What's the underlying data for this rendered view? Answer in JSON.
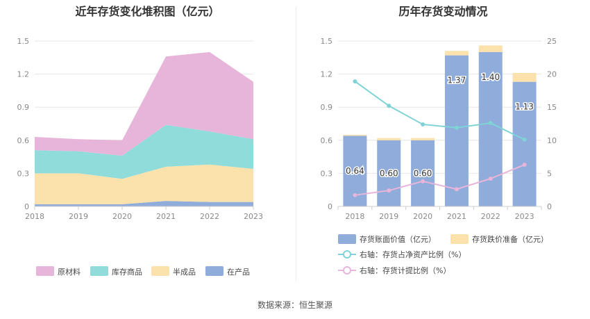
{
  "footer": {
    "source": "数据来源：恒生聚源"
  },
  "colors": {
    "raw_material": "#e8b5da",
    "goods": "#8fdcdb",
    "semi": "#fbe1ab",
    "wip": "#8facdb",
    "book_value": "#8facdb",
    "impairment": "#fbe1ab",
    "ratio_line": "#7fd3d6",
    "provision_line": "#e8b5da",
    "grid": "#e6e6e6",
    "axis_text": "#888888"
  },
  "chart_data": [
    {
      "type": "area",
      "stacked": true,
      "title": "近年存货变化堆积图（亿元）",
      "x": [
        "2018",
        "2019",
        "2020",
        "2021",
        "2022",
        "2023"
      ],
      "ylim": [
        0,
        1.5
      ],
      "yticks": [
        "0",
        "0.3",
        "0.6",
        "0.9",
        "1.2",
        "1.5"
      ],
      "grid": true,
      "legend_position": "bottom",
      "series": [
        {
          "name": "在产品",
          "color_key": "wip",
          "values": [
            0.02,
            0.02,
            0.02,
            0.05,
            0.04,
            0.04
          ]
        },
        {
          "name": "半成品",
          "color_key": "semi",
          "values": [
            0.28,
            0.28,
            0.23,
            0.31,
            0.34,
            0.3
          ]
        },
        {
          "name": "库存商品",
          "color_key": "goods",
          "values": [
            0.21,
            0.2,
            0.21,
            0.38,
            0.3,
            0.27
          ]
        },
        {
          "name": "原材料",
          "color_key": "raw_material",
          "values": [
            0.12,
            0.11,
            0.14,
            0.62,
            0.72,
            0.52
          ]
        }
      ],
      "legend_order": [
        "原材料",
        "库存商品",
        "半成品",
        "在产品"
      ]
    },
    {
      "type": "bar",
      "stacked": true,
      "title": "历年存货变动情况",
      "categories": [
        "2018",
        "2019",
        "2020",
        "2021",
        "2022",
        "2023"
      ],
      "ylim": [
        0,
        1.5
      ],
      "yticks": [
        "0",
        "0.3",
        "0.6",
        "0.9",
        "1.2",
        "1.5"
      ],
      "y2lim": [
        0,
        25
      ],
      "y2ticks": [
        "0",
        "5",
        "10",
        "15",
        "20",
        "25"
      ],
      "grid": true,
      "legend_position": "bottom",
      "series": [
        {
          "name": "存货账面价值（亿元）",
          "color_key": "book_value",
          "values": [
            0.64,
            0.6,
            0.6,
            1.37,
            1.4,
            1.13
          ],
          "labels": [
            "0.64",
            "0.60",
            "0.60",
            "1.37",
            "1.40",
            "1.13"
          ]
        },
        {
          "name": "存货跌价准备（亿元）",
          "color_key": "impairment",
          "values": [
            0.01,
            0.02,
            0.02,
            0.04,
            0.06,
            0.08
          ]
        }
      ],
      "lines": [
        {
          "name": "右轴：存货占净资产比例（%）",
          "color_key": "ratio_line",
          "values": [
            18.9,
            15.2,
            12.4,
            11.9,
            12.6,
            10.1
          ]
        },
        {
          "name": "右轴：存货计提比例（%）",
          "color_key": "provision_line",
          "values": [
            1.7,
            2.4,
            3.8,
            2.6,
            4.2,
            6.3
          ]
        }
      ]
    }
  ]
}
